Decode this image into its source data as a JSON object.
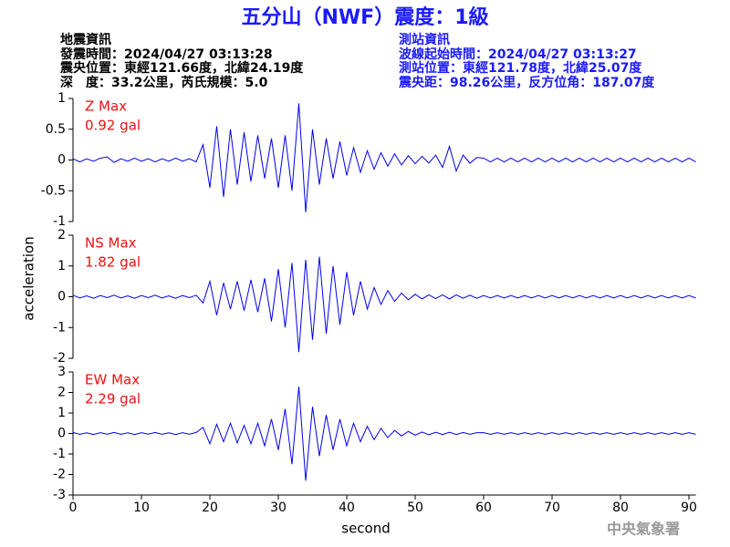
{
  "header": {
    "title": "五分山（NWF）震度：1級",
    "left": [
      "地震資訊",
      "發震時間：2024/04/27 03:13:28",
      "震央位置：東經121.66度，北緯24.19度",
      "深　度：33.2公里，芮氏規模：5.0"
    ],
    "right": [
      "測站資訊",
      "波線起始時間：2024/04/27 03:13:27",
      "測站位置：東經121.78度，北緯25.07度",
      "震央距：98.26公里，反方位角：187.07度"
    ]
  },
  "footer": "中央氣象署",
  "chart_data": [
    {
      "type": "line",
      "name": "Z Max",
      "annotation": "0.92 gal",
      "color": "#0000ee",
      "label_color": "#ee1111",
      "xlim": [
        0,
        91
      ],
      "ylim": [
        -1,
        1
      ],
      "yticks": [
        -1,
        -0.5,
        0,
        0.5,
        1
      ],
      "x": [
        0,
        1,
        2,
        3,
        4,
        5,
        6,
        7,
        8,
        9,
        10,
        11,
        12,
        13,
        14,
        15,
        16,
        17,
        18,
        19,
        20,
        21,
        22,
        23,
        24,
        25,
        26,
        27,
        28,
        29,
        30,
        31,
        32,
        33,
        34,
        35,
        36,
        37,
        38,
        39,
        40,
        41,
        42,
        43,
        44,
        45,
        46,
        47,
        48,
        49,
        50,
        51,
        52,
        53,
        54,
        55,
        56,
        57,
        58,
        59,
        60,
        61,
        62,
        63,
        64,
        65,
        66,
        67,
        68,
        69,
        70,
        71,
        72,
        73,
        74,
        75,
        76,
        77,
        78,
        79,
        80,
        81,
        82,
        83,
        84,
        85,
        86,
        87,
        88,
        89,
        90,
        91
      ],
      "values": [
        0.02,
        -0.03,
        0.02,
        -0.02,
        0.03,
        0.05,
        -0.04,
        0.02,
        -0.02,
        0.03,
        -0.02,
        0.02,
        -0.03,
        0.02,
        -0.02,
        0.03,
        -0.02,
        0.02,
        -0.03,
        0.25,
        -0.45,
        0.55,
        -0.6,
        0.5,
        -0.4,
        0.45,
        -0.35,
        0.4,
        -0.3,
        0.35,
        -0.45,
        0.4,
        -0.5,
        0.92,
        -0.85,
        0.5,
        -0.4,
        0.35,
        -0.3,
        0.3,
        -0.25,
        0.2,
        -0.2,
        0.15,
        -0.15,
        0.12,
        -0.1,
        0.1,
        -0.08,
        0.07,
        -0.06,
        0.06,
        -0.05,
        0.08,
        -0.12,
        0.22,
        -0.18,
        0.08,
        -0.05,
        0.04,
        0.03,
        -0.03,
        0.03,
        -0.03,
        0.03,
        -0.03,
        0.03,
        -0.03,
        0.03,
        -0.03,
        0.03,
        -0.03,
        0.03,
        -0.03,
        0.03,
        -0.03,
        0.03,
        -0.03,
        0.03,
        -0.03,
        0.03,
        -0.03,
        0.03,
        -0.03,
        0.03,
        -0.03,
        0.03,
        -0.03,
        0.03,
        -0.03,
        0.03,
        -0.03
      ]
    },
    {
      "type": "line",
      "name": "NS Max",
      "annotation": "1.82 gal",
      "color": "#0000ee",
      "label_color": "#ee1111",
      "y_label": "acceleration",
      "xlim": [
        0,
        91
      ],
      "ylim": [
        -2,
        2
      ],
      "yticks": [
        -2,
        -1,
        0,
        1,
        2
      ],
      "x": [
        0,
        1,
        2,
        3,
        4,
        5,
        6,
        7,
        8,
        9,
        10,
        11,
        12,
        13,
        14,
        15,
        16,
        17,
        18,
        19,
        20,
        21,
        22,
        23,
        24,
        25,
        26,
        27,
        28,
        29,
        30,
        31,
        32,
        33,
        34,
        35,
        36,
        37,
        38,
        39,
        40,
        41,
        42,
        43,
        44,
        45,
        46,
        47,
        48,
        49,
        50,
        51,
        52,
        53,
        54,
        55,
        56,
        57,
        58,
        59,
        60,
        61,
        62,
        63,
        64,
        65,
        66,
        67,
        68,
        69,
        70,
        71,
        72,
        73,
        74,
        75,
        76,
        77,
        78,
        79,
        80,
        81,
        82,
        83,
        84,
        85,
        86,
        87,
        88,
        89,
        90,
        91
      ],
      "values": [
        0.05,
        -0.04,
        0.03,
        -0.05,
        0.04,
        -0.03,
        0.05,
        -0.04,
        0.03,
        -0.05,
        0.04,
        -0.03,
        0.05,
        -0.04,
        0.03,
        -0.05,
        0.04,
        -0.03,
        0.05,
        -0.2,
        0.5,
        -0.6,
        0.45,
        -0.4,
        0.5,
        -0.45,
        0.55,
        -0.5,
        0.6,
        -0.8,
        0.9,
        -1.0,
        1.1,
        -1.8,
        1.2,
        -1.4,
        1.3,
        -1.2,
        1.0,
        -0.9,
        0.8,
        -0.6,
        0.5,
        -0.4,
        0.3,
        -0.25,
        0.2,
        -0.15,
        0.12,
        -0.1,
        0.08,
        -0.07,
        0.06,
        -0.06,
        0.06,
        -0.07,
        0.06,
        -0.05,
        0.05,
        -0.05,
        0.04,
        -0.04,
        0.04,
        -0.04,
        0.04,
        -0.04,
        0.04,
        -0.04,
        0.04,
        -0.04,
        0.04,
        -0.04,
        0.04,
        -0.04,
        0.04,
        -0.04,
        0.04,
        -0.04,
        0.04,
        -0.04,
        0.04,
        -0.04,
        0.04,
        -0.04,
        0.04,
        -0.04,
        0.04,
        -0.04,
        0.04,
        -0.04,
        0.04,
        -0.04
      ]
    },
    {
      "type": "line",
      "name": "EW Max",
      "annotation": "2.29 gal",
      "color": "#0000ee",
      "label_color": "#ee1111",
      "x_label": "second",
      "xlim": [
        0,
        91
      ],
      "xticks": [
        0,
        10,
        20,
        30,
        40,
        50,
        60,
        70,
        80,
        90
      ],
      "ylim": [
        -3,
        3
      ],
      "yticks": [
        -3,
        -2,
        -1,
        0,
        1,
        2,
        3
      ],
      "x": [
        0,
        1,
        2,
        3,
        4,
        5,
        6,
        7,
        8,
        9,
        10,
        11,
        12,
        13,
        14,
        15,
        16,
        17,
        18,
        19,
        20,
        21,
        22,
        23,
        24,
        25,
        26,
        27,
        28,
        29,
        30,
        31,
        32,
        33,
        34,
        35,
        36,
        37,
        38,
        39,
        40,
        41,
        42,
        43,
        44,
        45,
        46,
        47,
        48,
        49,
        50,
        51,
        52,
        53,
        54,
        55,
        56,
        57,
        58,
        59,
        60,
        61,
        62,
        63,
        64,
        65,
        66,
        67,
        68,
        69,
        70,
        71,
        72,
        73,
        74,
        75,
        76,
        77,
        78,
        79,
        80,
        81,
        82,
        83,
        84,
        85,
        86,
        87,
        88,
        89,
        90,
        91
      ],
      "values": [
        0.05,
        -0.04,
        0.03,
        -0.05,
        0.04,
        -0.03,
        0.05,
        -0.04,
        0.03,
        -0.05,
        0.04,
        -0.03,
        0.05,
        -0.04,
        0.03,
        -0.05,
        0.04,
        -0.03,
        0.05,
        0.3,
        -0.5,
        0.45,
        -0.4,
        0.5,
        -0.45,
        0.4,
        -0.5,
        0.5,
        -0.6,
        0.7,
        -0.8,
        1.2,
        -1.5,
        2.29,
        -2.3,
        1.3,
        -1.1,
        0.9,
        -0.8,
        0.7,
        -0.6,
        0.5,
        -0.4,
        0.35,
        -0.3,
        0.25,
        -0.2,
        0.15,
        -0.12,
        0.1,
        -0.08,
        0.07,
        -0.06,
        0.06,
        -0.05,
        0.06,
        -0.05,
        0.05,
        -0.04,
        0.04,
        0.04,
        -0.04,
        0.04,
        -0.04,
        0.04,
        -0.04,
        0.04,
        -0.04,
        0.04,
        -0.04,
        0.04,
        -0.04,
        0.04,
        -0.04,
        0.04,
        -0.04,
        0.04,
        -0.04,
        0.04,
        -0.04,
        0.04,
        -0.04,
        0.04,
        -0.04,
        0.04,
        -0.04,
        0.04,
        -0.04,
        0.04,
        -0.04,
        0.04,
        -0.04
      ]
    }
  ]
}
